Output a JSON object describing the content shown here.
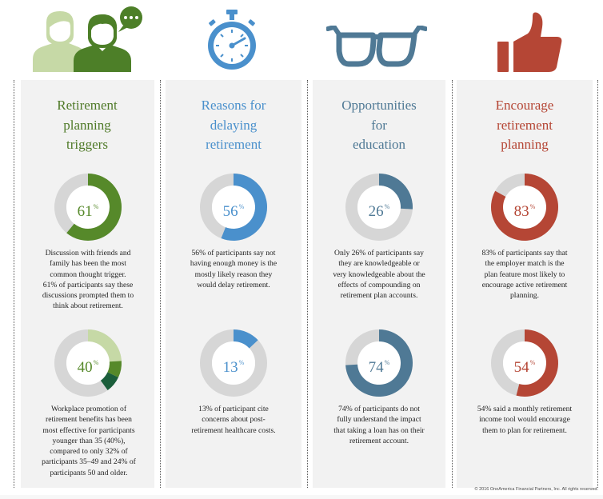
{
  "colors": {
    "green": "#56892a",
    "blue": "#4a90cc",
    "slate": "#4f7995",
    "red": "#b54635",
    "track": "#d6d6d6",
    "light_green": "#c6d9a6",
    "mid_green": "#56892a",
    "dark_green": "#1b5e3b",
    "title_green": "#4f7a28",
    "title_blue": "#4a90cc",
    "title_slate": "#4f7995",
    "title_red": "#b54635"
  },
  "columns": [
    {
      "icon": "people-chat-icon",
      "title": [
        "Retirement",
        "planning",
        "triggers"
      ],
      "stats": [
        {
          "percent": 61,
          "value": "61",
          "sign": "%",
          "description": [
            "Discussion with friends and",
            "family has been the most",
            "common thought trigger.",
            "61% of participants say these",
            "discussions prompted them to",
            "think about retirement."
          ]
        },
        {
          "percent": 40,
          "segments": [
            0.24,
            0.08,
            0.08
          ],
          "value": "40",
          "sign": "%",
          "description": [
            "Workplace promotion of",
            "retirement benefits has been",
            "most effective for participants",
            "younger than 35 (40%),",
            "compared to only 32% of",
            "participants 35–49 and 24% of",
            "participants 50 and older."
          ]
        }
      ]
    },
    {
      "icon": "stopwatch-icon",
      "title": [
        "Reasons for",
        "delaying",
        "retirement"
      ],
      "stats": [
        {
          "percent": 56,
          "value": "56",
          "sign": "%",
          "description": [
            "56% of participants say not",
            "having enough money is the",
            "mostly likely reason they",
            "would delay retirement."
          ]
        },
        {
          "percent": 13,
          "value": "13",
          "sign": "%",
          "description": [
            "13% of participant cite",
            "concerns about post-",
            "retirement healthcare costs."
          ]
        }
      ]
    },
    {
      "icon": "eyeglasses-icon",
      "title": [
        "Opportunities",
        "for",
        "education"
      ],
      "stats": [
        {
          "percent": 26,
          "value": "26",
          "sign": "%",
          "description": [
            "Only 26% of participants say",
            "they are knowledgeable or",
            "very knowledgeable about the",
            "effects of compounding on",
            "retirement plan accounts."
          ]
        },
        {
          "percent": 74,
          "value": "74",
          "sign": "%",
          "description": [
            "74% of participants do not",
            "fully understand the impact",
            "that taking a loan has on their",
            "retirement account."
          ]
        }
      ]
    },
    {
      "icon": "thumbs-up-icon",
      "title": [
        "Encourage",
        "retirement",
        "planning"
      ],
      "stats": [
        {
          "percent": 83,
          "value": "83",
          "sign": "%",
          "description": [
            "83% of participants say that",
            "the employer match is the",
            "plan feature most likely to",
            "encourage active retirement",
            "planning."
          ]
        },
        {
          "percent": 54,
          "value": "54",
          "sign": "%",
          "description": [
            "54% said a monthly retirement",
            "income tool would encourage",
            "them to plan for retirement."
          ]
        }
      ]
    }
  ],
  "footer": "© 2016 OneAmerica Financial Partners, Inc. All rights reserved."
}
